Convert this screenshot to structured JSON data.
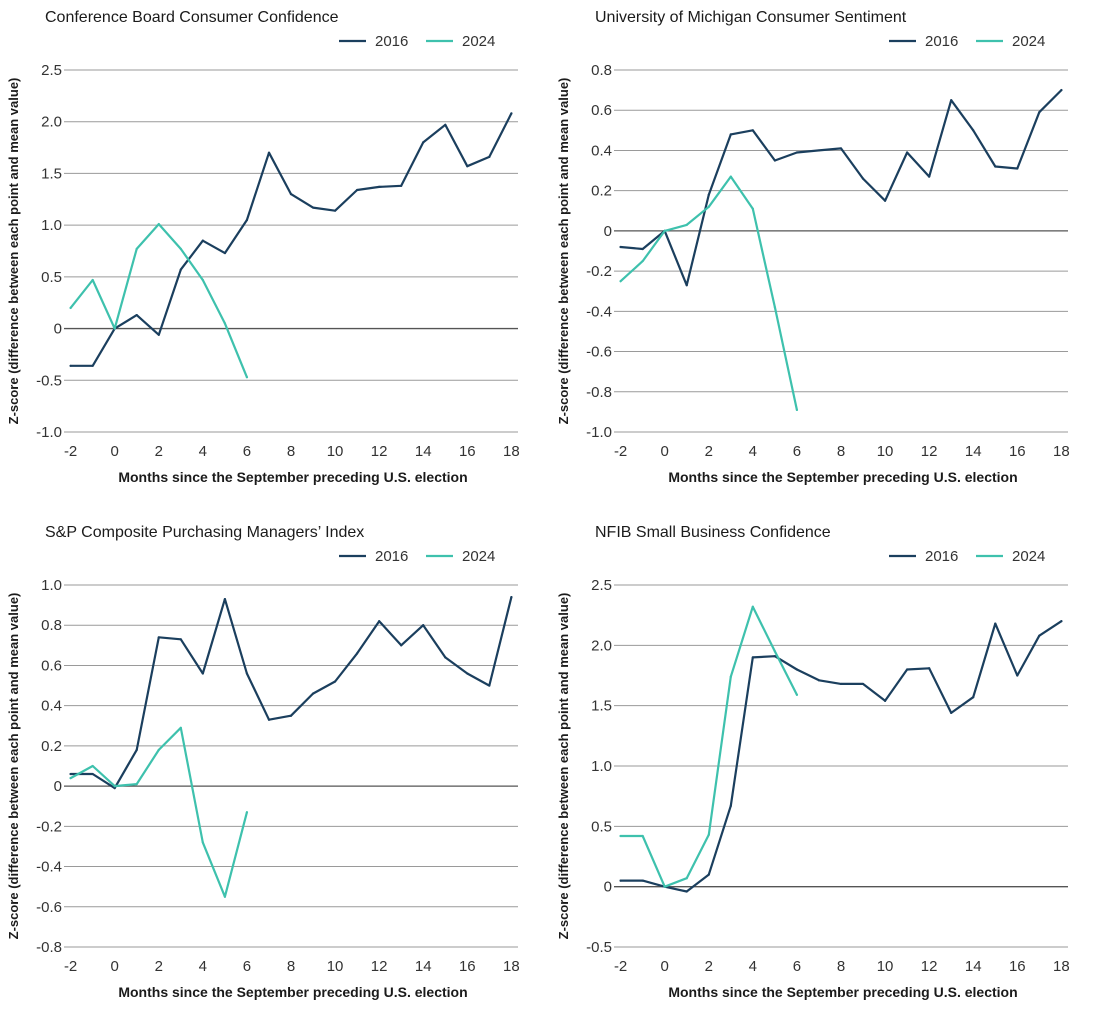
{
  "series_colors": {
    "2016": "#1b3f5e",
    "2024": "#3ec1ad"
  },
  "charts": [
    {
      "title": "Conference Board Consumer Confidence",
      "chart_data": {
        "type": "line",
        "title": "Conference Board Consumer Confidence",
        "xlabel": "Months since the September preceding U.S. election",
        "ylabel": "Z-score (difference between each point and mean value)",
        "xlim": [
          -2.3,
          18.3
        ],
        "ylim": [
          -1.0,
          2.5
        ],
        "yticks": [
          -1.0,
          -0.5,
          0,
          0.5,
          1.0,
          1.5,
          2.0,
          2.5
        ],
        "ytick_labels": [
          "-1.0",
          "-0.5",
          "0",
          "0.5",
          "1.0",
          "1.5",
          "2.0",
          "2.5"
        ],
        "xticks": [
          -2,
          0,
          2,
          4,
          6,
          8,
          10,
          12,
          14,
          16,
          18
        ],
        "xtick_labels": [
          "-2",
          "0",
          "2",
          "4",
          "6",
          "8",
          "10",
          "12",
          "14",
          "16",
          "18"
        ],
        "grid": true,
        "legend": "top-right",
        "series": [
          {
            "name": "2016",
            "x": [
              -2,
              -1,
              0,
              1,
              2,
              3,
              4,
              5,
              6,
              7,
              8,
              9,
              10,
              11,
              12,
              13,
              14,
              15,
              16,
              17,
              18
            ],
            "values": [
              -0.36,
              -0.36,
              0.0,
              0.13,
              -0.06,
              0.57,
              0.85,
              0.73,
              1.05,
              1.7,
              1.3,
              1.17,
              1.14,
              1.34,
              1.37,
              1.38,
              1.8,
              1.97,
              1.57,
              1.66,
              2.08
            ]
          },
          {
            "name": "2024",
            "x": [
              -2,
              -1,
              0,
              1,
              2,
              3,
              4,
              5,
              6
            ],
            "values": [
              0.2,
              0.47,
              0.0,
              0.77,
              1.01,
              0.77,
              0.47,
              0.05,
              -0.47
            ]
          }
        ]
      }
    },
    {
      "title": "University of Michigan Consumer Sentiment",
      "chart_data": {
        "type": "line",
        "title": "University of Michigan Consumer Sentiment",
        "xlabel": "Months since the September preceding U.S. election",
        "ylabel": "Z-score (difference between each point and mean value)",
        "xlim": [
          -2.3,
          18.3
        ],
        "ylim": [
          -1.0,
          0.8
        ],
        "yticks": [
          -1.0,
          -0.8,
          -0.6,
          -0.4,
          -0.2,
          0,
          0.2,
          0.4,
          0.6,
          0.8
        ],
        "ytick_labels": [
          "-1.0",
          "-0.8",
          "-0.6",
          "-0.4",
          "-0.2",
          "0",
          "0.2",
          "0.4",
          "0.6",
          "0.8"
        ],
        "xticks": [
          -2,
          0,
          2,
          4,
          6,
          8,
          10,
          12,
          14,
          16,
          18
        ],
        "xtick_labels": [
          "-2",
          "0",
          "2",
          "4",
          "6",
          "8",
          "10",
          "12",
          "14",
          "16",
          "18"
        ],
        "grid": true,
        "legend": "top-right",
        "series": [
          {
            "name": "2016",
            "x": [
              -2,
              -1,
              0,
              1,
              2,
              3,
              4,
              5,
              6,
              7,
              8,
              9,
              10,
              11,
              12,
              13,
              14,
              15,
              16,
              17,
              18
            ],
            "values": [
              -0.08,
              -0.09,
              0.0,
              -0.27,
              0.18,
              0.48,
              0.5,
              0.35,
              0.39,
              0.4,
              0.41,
              0.26,
              0.15,
              0.39,
              0.27,
              0.65,
              0.5,
              0.32,
              0.31,
              0.59,
              0.7
            ]
          },
          {
            "name": "2024",
            "x": [
              -2,
              -1,
              0,
              1,
              2,
              3,
              4,
              5,
              6
            ],
            "values": [
              -0.25,
              -0.15,
              0.0,
              0.03,
              0.12,
              0.27,
              0.11,
              -0.38,
              -0.89
            ]
          }
        ]
      }
    },
    {
      "title": "S&P Composite Purchasing Managers’ Index",
      "chart_data": {
        "type": "line",
        "title": "S&P Composite Purchasing Managers’ Index",
        "xlabel": "Months since the September preceding U.S. election",
        "ylabel": "Z-score (difference between each point and mean value)",
        "xlim": [
          -2.3,
          18.3
        ],
        "ylim": [
          -0.8,
          1.0
        ],
        "yticks": [
          -0.8,
          -0.6,
          -0.4,
          -0.2,
          0,
          0.2,
          0.4,
          0.6,
          0.8,
          1.0
        ],
        "ytick_labels": [
          "-0.8",
          "-0.6",
          "-0.4",
          "-0.2",
          "0",
          "0.2",
          "0.4",
          "0.6",
          "0.8",
          "1.0"
        ],
        "xticks": [
          -2,
          0,
          2,
          4,
          6,
          8,
          10,
          12,
          14,
          16,
          18
        ],
        "xtick_labels": [
          "-2",
          "0",
          "2",
          "4",
          "6",
          "8",
          "10",
          "12",
          "14",
          "16",
          "18"
        ],
        "grid": true,
        "legend": "top-right",
        "series": [
          {
            "name": "2016",
            "x": [
              -2,
              -1,
              0,
              1,
              2,
              3,
              4,
              5,
              6,
              7,
              8,
              9,
              10,
              11,
              12,
              13,
              14,
              15,
              16,
              17,
              18
            ],
            "values": [
              0.06,
              0.06,
              -0.01,
              0.18,
              0.74,
              0.73,
              0.56,
              0.93,
              0.56,
              0.33,
              0.35,
              0.46,
              0.52,
              0.66,
              0.82,
              0.7,
              0.8,
              0.64,
              0.56,
              0.5,
              0.94
            ]
          },
          {
            "name": "2024",
            "x": [
              -2,
              -1,
              0,
              1,
              2,
              3,
              4,
              5,
              6
            ],
            "values": [
              0.04,
              0.1,
              0.0,
              0.01,
              0.18,
              0.29,
              -0.28,
              -0.55,
              -0.13
            ]
          }
        ]
      }
    },
    {
      "title": "NFIB Small Business Confidence",
      "chart_data": {
        "type": "line",
        "title": "NFIB Small Business Confidence",
        "xlabel": "Months since the September preceding U.S. election",
        "ylabel": "Z-score (difference between each point and mean value)",
        "xlim": [
          -2.3,
          18.3
        ],
        "ylim": [
          -0.5,
          2.5
        ],
        "yticks": [
          -0.5,
          0,
          0.5,
          1.0,
          1.5,
          2.0,
          2.5
        ],
        "ytick_labels": [
          "-0.5",
          "0",
          "0.5",
          "1.0",
          "1.5",
          "2.0",
          "2.5"
        ],
        "xticks": [
          -2,
          0,
          2,
          4,
          6,
          8,
          10,
          12,
          14,
          16,
          18
        ],
        "xtick_labels": [
          "-2",
          "0",
          "2",
          "4",
          "6",
          "8",
          "10",
          "12",
          "14",
          "16",
          "18"
        ],
        "grid": true,
        "legend": "top-right",
        "series": [
          {
            "name": "2016",
            "x": [
              -2,
              -1,
              0,
              1,
              2,
              3,
              4,
              5,
              6,
              7,
              8,
              9,
              10,
              11,
              12,
              13,
              14,
              15,
              16,
              17,
              18
            ],
            "values": [
              0.05,
              0.05,
              0.0,
              -0.04,
              0.1,
              0.67,
              1.9,
              1.91,
              1.8,
              1.71,
              1.68,
              1.68,
              1.54,
              1.8,
              1.81,
              1.44,
              1.57,
              2.18,
              1.75,
              2.08,
              2.2
            ]
          },
          {
            "name": "2024",
            "x": [
              -2,
              -1,
              0,
              1,
              2,
              3,
              4,
              5,
              6
            ],
            "values": [
              0.42,
              0.42,
              0.0,
              0.07,
              0.43,
              1.74,
              2.32,
              1.95,
              1.59
            ]
          }
        ]
      }
    }
  ]
}
